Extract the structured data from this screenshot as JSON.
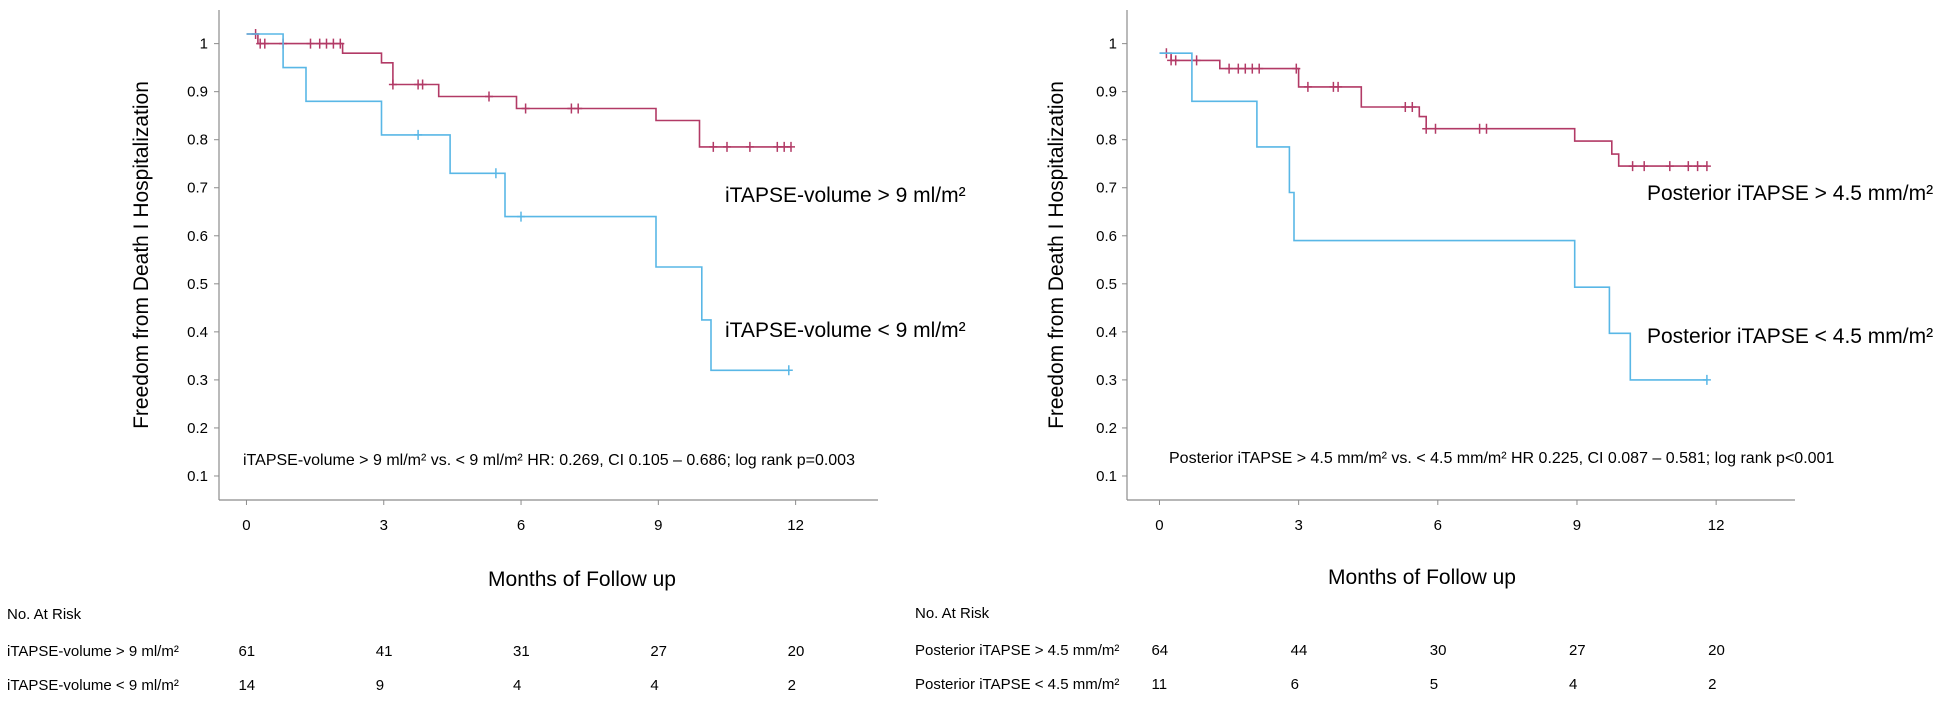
{
  "chart_data": [
    {
      "type": "line",
      "subtype": "kaplan-meier",
      "ylabel": "Freedom from Death I Hospitalization",
      "xlabel": "Months of Follow up",
      "xticks": [
        0,
        3,
        6,
        9,
        12
      ],
      "yticks": [
        0.1,
        0.2,
        0.3,
        0.4,
        0.5,
        0.6,
        0.7,
        0.8,
        0.9,
        1
      ],
      "ytick_labels": [
        "0.1",
        "0.2",
        "0.3",
        "0.4",
        "0.5",
        "0.6",
        "0.7",
        "0.8",
        "0.9",
        "1"
      ],
      "xlim": [
        -0.6,
        13.8
      ],
      "ylim": [
        0.05,
        1.07
      ],
      "annotation": "iTAPSE-volume > 9 ml/m² vs. < 9 ml/m² HR: 0.269, CI 0.105 – 0.686; log rank p=0.003",
      "series": [
        {
          "name": "iTAPSE-volume > 9 ml/m²",
          "label": "iTAPSE-volume > 9 ml/m²",
          "color": "#b23a66",
          "steps": [
            [
              0,
              1.02
            ],
            [
              0.25,
              1.0
            ],
            [
              2.1,
              0.98
            ],
            [
              2.95,
              0.96
            ],
            [
              3.2,
              0.915
            ],
            [
              4.2,
              0.89
            ],
            [
              5.9,
              0.865
            ],
            [
              8.95,
              0.84
            ],
            [
              9.9,
              0.785
            ],
            [
              11.9,
              0.785
            ]
          ],
          "censored": [
            [
              0.2,
              1.02
            ],
            [
              0.3,
              1.0
            ],
            [
              0.4,
              1.0
            ],
            [
              0.8,
              1.0
            ],
            [
              1.4,
              1.0
            ],
            [
              1.6,
              1.0
            ],
            [
              1.75,
              1.0
            ],
            [
              1.9,
              1.0
            ],
            [
              2.05,
              1.0
            ],
            [
              3.2,
              0.915
            ],
            [
              3.75,
              0.915
            ],
            [
              3.85,
              0.915
            ],
            [
              5.3,
              0.89
            ],
            [
              6.1,
              0.865
            ],
            [
              7.1,
              0.865
            ],
            [
              7.25,
              0.865
            ],
            [
              10.2,
              0.785
            ],
            [
              10.5,
              0.785
            ],
            [
              11.0,
              0.785
            ],
            [
              11.6,
              0.785
            ],
            [
              11.75,
              0.785
            ],
            [
              11.9,
              0.785
            ]
          ]
        },
        {
          "name": "iTAPSE-volume < 9 ml/m²",
          "label": "iTAPSE-volume < 9 ml/m²",
          "color": "#59b7e6",
          "steps": [
            [
              0,
              1.02
            ],
            [
              0.8,
              0.95
            ],
            [
              1.3,
              0.88
            ],
            [
              2.95,
              0.81
            ],
            [
              4.45,
              0.73
            ],
            [
              5.65,
              0.64
            ],
            [
              8.95,
              0.535
            ],
            [
              9.95,
              0.425
            ],
            [
              10.15,
              0.32
            ],
            [
              11.85,
              0.32
            ]
          ],
          "censored": [
            [
              3.75,
              0.81
            ],
            [
              5.45,
              0.73
            ],
            [
              6.0,
              0.64
            ],
            [
              11.85,
              0.32
            ]
          ]
        }
      ],
      "risk_table": {
        "title": "No. At Risk",
        "rows": [
          {
            "label": "iTAPSE-volume > 9 ml/m²",
            "values": [
              "61",
              "41",
              "31",
              "27",
              "20"
            ]
          },
          {
            "label": "iTAPSE-volume < 9 ml/m²",
            "values": [
              "14",
              "9",
              "4",
              "4",
              "2"
            ]
          }
        ]
      }
    },
    {
      "type": "line",
      "subtype": "kaplan-meier",
      "ylabel": "Freedom from Death I Hospitalization",
      "xlabel": "Months of Follow up",
      "xticks": [
        0,
        3,
        6,
        9,
        12
      ],
      "yticks": [
        0.1,
        0.2,
        0.3,
        0.4,
        0.5,
        0.6,
        0.7,
        0.8,
        0.9,
        1
      ],
      "ytick_labels": [
        "0.1",
        "0.2",
        "0.3",
        "0.4",
        "0.5",
        "0.6",
        "0.7",
        "0.8",
        "0.9",
        "1"
      ],
      "xlim": [
        -0.7,
        13.7
      ],
      "ylim": [
        0.05,
        1.07
      ],
      "annotation": "Posterior iTAPSE > 4.5 mm/m² vs. < 4.5 mm/m² HR 0.225, CI 0.087 – 0.581; log rank p<0.001",
      "series": [
        {
          "name": "Posterior iTAPSE > 4.5 mm/m²",
          "label": "Posterior iTAPSE > 4.5 mm/m²",
          "color": "#b23a66",
          "steps": [
            [
              0,
              0.98
            ],
            [
              0.25,
              0.965
            ],
            [
              1.3,
              0.948
            ],
            [
              3.0,
              0.91
            ],
            [
              4.35,
              0.868
            ],
            [
              5.6,
              0.848
            ],
            [
              5.75,
              0.823
            ],
            [
              8.95,
              0.797
            ],
            [
              9.75,
              0.77
            ],
            [
              9.9,
              0.745
            ],
            [
              11.8,
              0.745
            ]
          ],
          "censored": [
            [
              0.15,
              0.98
            ],
            [
              0.25,
              0.965
            ],
            [
              0.35,
              0.965
            ],
            [
              0.8,
              0.965
            ],
            [
              1.5,
              0.948
            ],
            [
              1.7,
              0.948
            ],
            [
              1.85,
              0.948
            ],
            [
              2.0,
              0.948
            ],
            [
              2.15,
              0.948
            ],
            [
              2.95,
              0.948
            ],
            [
              3.2,
              0.91
            ],
            [
              3.75,
              0.91
            ],
            [
              3.85,
              0.91
            ],
            [
              5.3,
              0.868
            ],
            [
              5.45,
              0.868
            ],
            [
              5.75,
              0.823
            ],
            [
              5.95,
              0.823
            ],
            [
              6.9,
              0.823
            ],
            [
              7.05,
              0.823
            ],
            [
              10.2,
              0.745
            ],
            [
              10.45,
              0.745
            ],
            [
              11.0,
              0.745
            ],
            [
              11.4,
              0.745
            ],
            [
              11.6,
              0.745
            ],
            [
              11.8,
              0.745
            ]
          ]
        },
        {
          "name": "Posterior iTAPSE < 4.5 mm/m²",
          "label": "Posterior iTAPSE < 4.5 mm/m²",
          "color": "#59b7e6",
          "steps": [
            [
              0,
              0.98
            ],
            [
              0.7,
              0.88
            ],
            [
              2.1,
              0.785
            ],
            [
              2.8,
              0.69
            ],
            [
              2.9,
              0.59
            ],
            [
              8.95,
              0.493
            ],
            [
              9.7,
              0.397
            ],
            [
              10.15,
              0.3
            ],
            [
              11.8,
              0.3
            ]
          ],
          "censored": [
            [
              11.8,
              0.3
            ]
          ]
        }
      ],
      "risk_table": {
        "title": "No. At Risk",
        "rows": [
          {
            "label": "Posterior iTAPSE > 4.5 mm/m²",
            "values": [
              "64",
              "44",
              "30",
              "27",
              "20"
            ]
          },
          {
            "label": "Posterior iTAPSE < 4.5 mm/m²",
            "values": [
              "11",
              "6",
              "5",
              "4",
              "2"
            ]
          }
        ]
      }
    }
  ]
}
